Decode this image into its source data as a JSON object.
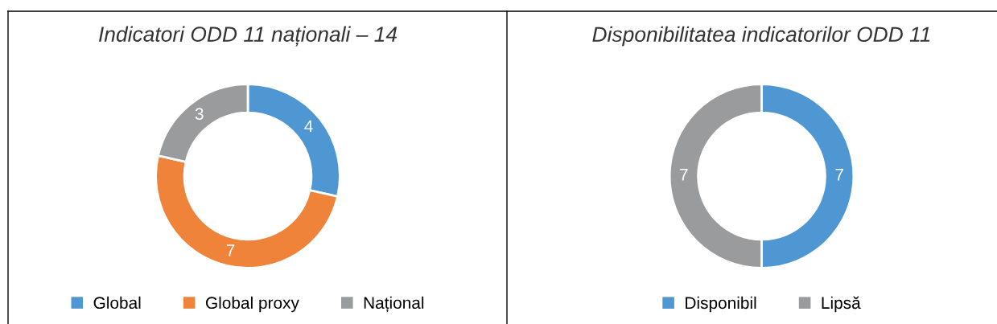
{
  "chart_data": [
    {
      "type": "donut",
      "title": "Indicatori ODD 11 naționali – 14",
      "categories": [
        "Global",
        "Global proxy",
        "Național"
      ],
      "values": [
        4,
        7,
        3
      ],
      "colors": [
        "#4f97d3",
        "#f0833a",
        "#999b9c"
      ],
      "data_labels": true,
      "legend": "bottom"
    },
    {
      "type": "donut",
      "title": "Disponibilitatea indicatorilor ODD 11",
      "categories": [
        "Disponibil",
        "Lipsă"
      ],
      "values": [
        7,
        7
      ],
      "colors": [
        "#4f97d3",
        "#999b9c"
      ],
      "data_labels": true,
      "legend": "bottom"
    }
  ]
}
